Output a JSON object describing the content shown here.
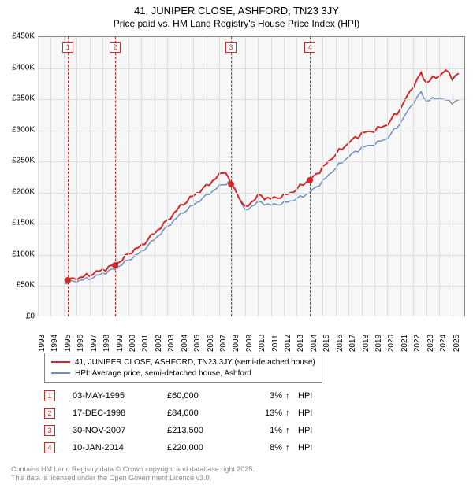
{
  "title_line1": "41, JUNIPER CLOSE, ASHFORD, TN23 3JY",
  "title_line2": "Price paid vs. HM Land Registry's House Price Index (HPI)",
  "chart": {
    "type": "line",
    "background_color": "#f7f7f7",
    "grid_color": "#dddddd",
    "border_color": "#888888",
    "x_year_min": 1993,
    "x_year_max": 2026,
    "x_tick_years": [
      1993,
      1994,
      1995,
      1996,
      1997,
      1998,
      1999,
      2000,
      2001,
      2002,
      2003,
      2004,
      2005,
      2006,
      2007,
      2008,
      2009,
      2010,
      2011,
      2012,
      2013,
      2014,
      2015,
      2016,
      2017,
      2018,
      2019,
      2020,
      2021,
      2022,
      2023,
      2024,
      2025
    ],
    "ylim": [
      0,
      450000
    ],
    "y_ticks": [
      0,
      50000,
      100000,
      150000,
      200000,
      250000,
      300000,
      350000,
      400000,
      450000
    ],
    "y_tick_labels": [
      "£0",
      "£50K",
      "£100K",
      "£150K",
      "£200K",
      "£250K",
      "£300K",
      "£350K",
      "£400K",
      "£450K"
    ],
    "series": [
      {
        "name": "subject",
        "label": "41, JUNIPER CLOSE, ASHFORD, TN23 3JY (semi-detached house)",
        "color": "#d62728",
        "line_width": 2,
        "points": [
          [
            1995.33,
            60000
          ],
          [
            1996.0,
            62000
          ],
          [
            1997.0,
            68000
          ],
          [
            1998.0,
            76000
          ],
          [
            1998.96,
            84000
          ],
          [
            1999.5,
            92000
          ],
          [
            2000.0,
            102000
          ],
          [
            2001.0,
            115000
          ],
          [
            2002.0,
            135000
          ],
          [
            2003.0,
            155000
          ],
          [
            2004.0,
            178000
          ],
          [
            2005.0,
            195000
          ],
          [
            2006.0,
            210000
          ],
          [
            2007.0,
            228000
          ],
          [
            2007.5,
            235000
          ],
          [
            2007.91,
            213500
          ],
          [
            2008.5,
            195000
          ],
          [
            2009.0,
            175000
          ],
          [
            2009.5,
            185000
          ],
          [
            2010.0,
            195000
          ],
          [
            2011.0,
            190000
          ],
          [
            2012.0,
            195000
          ],
          [
            2013.0,
            205000
          ],
          [
            2013.5,
            215000
          ],
          [
            2014.03,
            220000
          ],
          [
            2015.0,
            240000
          ],
          [
            2016.0,
            262000
          ],
          [
            2017.0,
            280000
          ],
          [
            2018.0,
            295000
          ],
          [
            2019.0,
            300000
          ],
          [
            2020.0,
            310000
          ],
          [
            2021.0,
            335000
          ],
          [
            2022.0,
            372000
          ],
          [
            2022.6,
            390000
          ],
          [
            2023.0,
            378000
          ],
          [
            2024.0,
            388000
          ],
          [
            2024.5,
            396000
          ],
          [
            2025.0,
            385000
          ],
          [
            2025.5,
            390000
          ]
        ]
      },
      {
        "name": "hpi",
        "label": "HPI: Average price, semi-detached house, Ashford",
        "color": "#6a8fc5",
        "line_width": 1.5,
        "points": [
          [
            1995.0,
            55000
          ],
          [
            1996.0,
            58000
          ],
          [
            1997.0,
            62000
          ],
          [
            1998.0,
            70000
          ],
          [
            1999.0,
            78000
          ],
          [
            2000.0,
            92000
          ],
          [
            2001.0,
            105000
          ],
          [
            2002.0,
            125000
          ],
          [
            2003.0,
            145000
          ],
          [
            2004.0,
            165000
          ],
          [
            2005.0,
            180000
          ],
          [
            2006.0,
            195000
          ],
          [
            2007.0,
            210000
          ],
          [
            2007.8,
            218000
          ],
          [
            2008.5,
            195000
          ],
          [
            2009.0,
            170000
          ],
          [
            2009.5,
            178000
          ],
          [
            2010.0,
            185000
          ],
          [
            2011.0,
            180000
          ],
          [
            2012.0,
            183000
          ],
          [
            2013.0,
            190000
          ],
          [
            2014.0,
            200000
          ],
          [
            2015.0,
            218000
          ],
          [
            2016.0,
            240000
          ],
          [
            2017.0,
            258000
          ],
          [
            2018.0,
            272000
          ],
          [
            2019.0,
            278000
          ],
          [
            2020.0,
            288000
          ],
          [
            2021.0,
            312000
          ],
          [
            2022.0,
            345000
          ],
          [
            2022.6,
            360000
          ],
          [
            2023.0,
            348000
          ],
          [
            2024.0,
            352000
          ],
          [
            2025.0,
            345000
          ],
          [
            2025.5,
            348000
          ]
        ]
      }
    ],
    "sale_markers": [
      {
        "n": "1",
        "year": 1995.33,
        "price": 60000,
        "color": "#d62728"
      },
      {
        "n": "2",
        "year": 1998.96,
        "price": 84000,
        "color": "#d62728"
      },
      {
        "n": "3",
        "year": 2007.91,
        "price": 213500,
        "color": "#d62728"
      },
      {
        "n": "4",
        "year": 2014.03,
        "price": 220000,
        "color": "#d62728"
      }
    ],
    "vline_color": "#d62728"
  },
  "legend_items": [
    {
      "label": "41, JUNIPER CLOSE, ASHFORD, TN23 3JY (semi-detached house)",
      "color": "#d62728",
      "width": 2
    },
    {
      "label": "HPI: Average price, semi-detached house, Ashford",
      "color": "#6a8fc5",
      "width": 1.5
    }
  ],
  "sales": [
    {
      "n": "1",
      "date": "03-MAY-1995",
      "price": "£60,000",
      "diff": "3%",
      "arrow": "↑",
      "vs": "HPI",
      "color": "#d62728"
    },
    {
      "n": "2",
      "date": "17-DEC-1998",
      "price": "£84,000",
      "diff": "13%",
      "arrow": "↑",
      "vs": "HPI",
      "color": "#d62728"
    },
    {
      "n": "3",
      "date": "30-NOV-2007",
      "price": "£213,500",
      "diff": "1%",
      "arrow": "↑",
      "vs": "HPI",
      "color": "#d62728"
    },
    {
      "n": "4",
      "date": "10-JAN-2014",
      "price": "£220,000",
      "diff": "8%",
      "arrow": "↑",
      "vs": "HPI",
      "color": "#d62728"
    }
  ],
  "footer_line1": "Contains HM Land Registry data © Crown copyright and database right 2025.",
  "footer_line2": "This data is licensed under the Open Government Licence v3.0."
}
